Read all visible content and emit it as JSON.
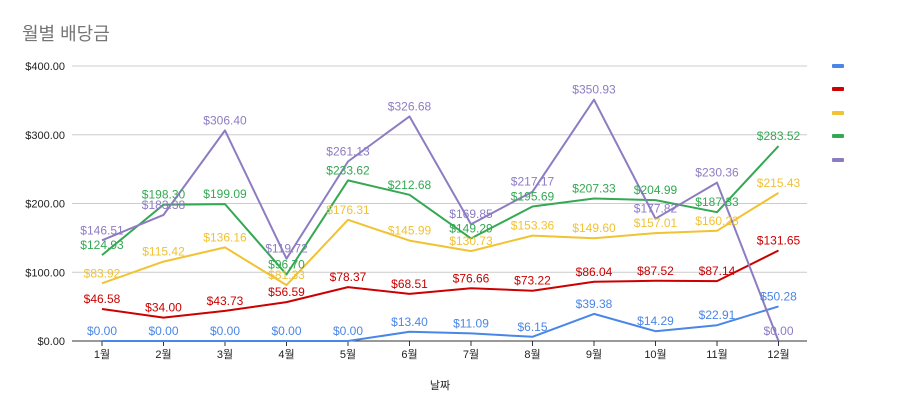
{
  "chart_data": {
    "type": "line",
    "title": "월별 배당금",
    "xlabel": "날짜",
    "ylabel": "",
    "categories": [
      "1월",
      "2월",
      "3월",
      "4월",
      "5월",
      "6월",
      "7월",
      "8월",
      "9월",
      "10월",
      "11월",
      "12월"
    ],
    "ylim": [
      0,
      400
    ],
    "yticks": [
      "$0.00",
      "$100.00",
      "$200.00",
      "$300.00",
      "$400.00"
    ],
    "ytick_values": [
      0,
      100,
      200,
      300,
      400
    ],
    "grid": true,
    "legend": "right",
    "series": [
      {
        "color": "#4a86e8",
        "values": [
          0,
          0,
          0,
          0,
          0,
          13.4,
          11.09,
          6.15,
          39.38,
          14.29,
          22.91,
          50.28
        ],
        "labels": [
          "$0.00",
          "$0.00",
          "$0.00",
          "$0.00",
          "$0.00",
          "$13.40",
          "$11.09",
          "$6.15",
          "$39.38",
          "$14.29",
          "$22.91",
          "$50.28"
        ]
      },
      {
        "color": "#cc0000",
        "values": [
          46.58,
          34.0,
          43.73,
          56.59,
          78.37,
          68.51,
          76.66,
          73.22,
          86.04,
          87.52,
          87.14,
          131.65
        ],
        "labels": [
          "$46.58",
          "$34.00",
          "$43.73",
          "$56.59",
          "$78.37",
          "$68.51",
          "$76.66",
          "$73.22",
          "$86.04",
          "$87.52",
          "$87.14",
          "$131.65"
        ]
      },
      {
        "color": "#f1c232",
        "values": [
          83.92,
          115.42,
          136.16,
          81.33,
          176.31,
          145.99,
          130.73,
          153.36,
          149.6,
          157.01,
          160.23,
          215.43
        ],
        "labels": [
          "$83.92",
          "$115.42",
          "$136.16",
          "$81.33",
          "$176.31",
          "$145.99",
          "$130.73",
          "$153.36",
          "$149.60",
          "$157.01",
          "$160.23",
          "$215.43"
        ]
      },
      {
        "color": "#34a853",
        "values": [
          124.93,
          198.3,
          199.09,
          96.7,
          233.62,
          212.68,
          149.29,
          195.69,
          207.33,
          204.99,
          187.33,
          283.52
        ],
        "labels": [
          "$124.93",
          "$198.30",
          "$199.09",
          "$96.70",
          "$233.62",
          "$212.68",
          "$149.29",
          "$195.69",
          "$207.33",
          "$204.99",
          "$187.33",
          "$283.52"
        ]
      },
      {
        "color": "#8e7cc3",
        "values": [
          146.51,
          183.38,
          306.4,
          119.72,
          261.13,
          326.68,
          169.85,
          217.17,
          350.93,
          177.82,
          230.36,
          0.0
        ],
        "labels": [
          "$146.51",
          "$183.38",
          "$306.40",
          "$119.72",
          "$261.13",
          "$326.68",
          "$169.85",
          "$217.17",
          "$350.93",
          "$177.82",
          "$230.36",
          "$0.00"
        ]
      }
    ]
  }
}
